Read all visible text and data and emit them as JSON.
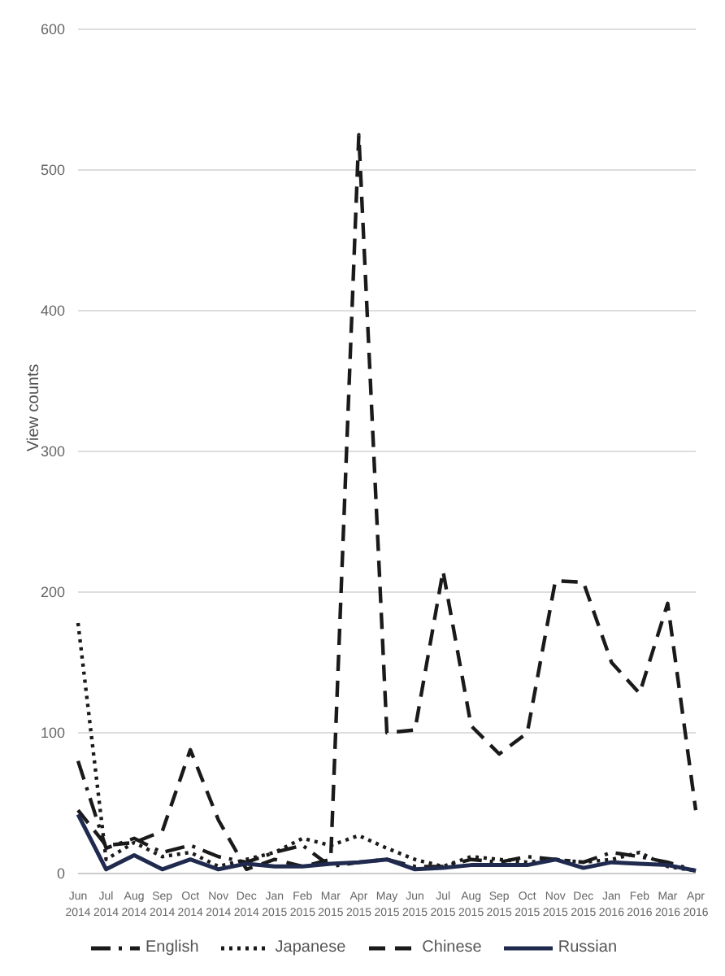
{
  "chart_data": {
    "type": "line",
    "ylabel": "View counts",
    "categories": [
      "Jun 2014",
      "Jul 2014",
      "Aug 2014",
      "Sep 2014",
      "Oct 2014",
      "Nov 2014",
      "Dec 2014",
      "Jan 2015",
      "Feb 2015",
      "Mar 2015",
      "Apr 2015",
      "May 2015",
      "Jun 2015",
      "Jul 2015",
      "Aug 2015",
      "Sep 2015",
      "Oct 2015",
      "Nov 2015",
      "Dec 2015",
      "Jan 2016",
      "Feb 2016",
      "Mar 2016",
      "Apr 2016"
    ],
    "series": [
      {
        "name": "English",
        "color": "#1a1a1a",
        "line_style": "dashdot",
        "values": [
          80,
          18,
          25,
          15,
          20,
          12,
          8,
          15,
          20,
          5,
          8,
          10,
          5,
          5,
          10,
          8,
          12,
          10,
          8,
          15,
          12,
          8,
          2
        ]
      },
      {
        "name": "Japanese",
        "color": "#1a1a1a",
        "line_style": "dotted",
        "values": [
          178,
          10,
          22,
          12,
          15,
          5,
          10,
          15,
          25,
          20,
          27,
          18,
          10,
          5,
          12,
          10,
          8,
          10,
          8,
          10,
          15,
          5,
          2
        ]
      },
      {
        "name": "Chinese",
        "color": "#1a1a1a",
        "line_style": "dashed",
        "values": [
          45,
          20,
          22,
          30,
          88,
          38,
          3,
          10,
          5,
          10,
          525,
          100,
          102,
          215,
          105,
          85,
          100,
          208,
          207,
          150,
          128,
          192,
          45
        ]
      },
      {
        "name": "Russian",
        "color": "#1f2a4e",
        "line_style": "solid",
        "values": [
          42,
          3,
          13,
          3,
          10,
          3,
          7,
          5,
          5,
          7,
          8,
          10,
          3,
          4,
          6,
          6,
          6,
          10,
          4,
          8,
          7,
          6,
          2
        ]
      }
    ],
    "ylim": [
      0,
      600
    ],
    "yticks": [
      0,
      100,
      200,
      300,
      400,
      500,
      600
    ],
    "grid": "y",
    "legend": "bottom",
    "marker": "none"
  }
}
